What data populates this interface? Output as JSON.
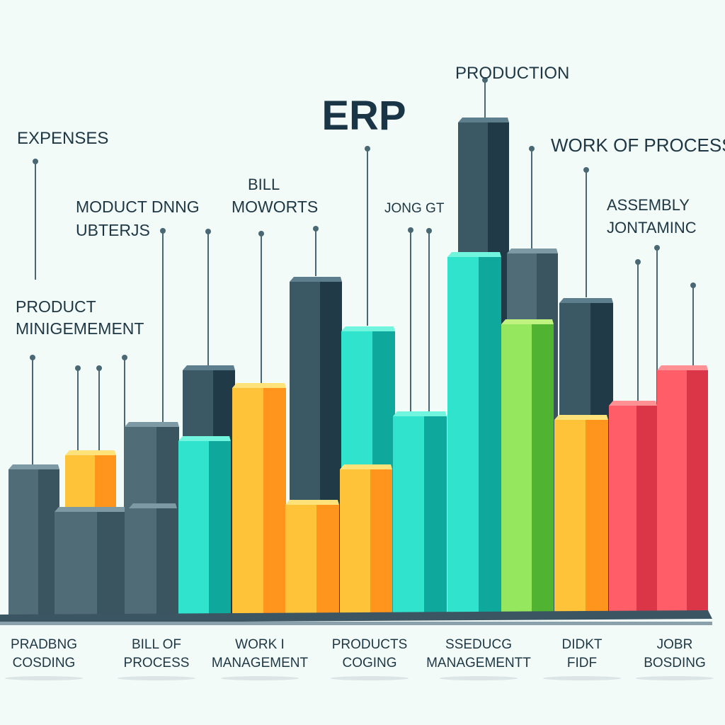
{
  "chart_data": {
    "type": "bar",
    "title": "ERP",
    "subtitle": "",
    "xlabel": "",
    "ylabel": "",
    "ylim": [
      0,
      1030
    ],
    "grid": false,
    "legend": "none",
    "colors": {
      "slate": [
        "#7d99a3",
        "#506c77",
        "#3a5560"
      ],
      "yellow": [
        "#ffe27a",
        "#ffc33a",
        "#ff951c"
      ],
      "teal": [
        "#71f5de",
        "#2fe3cd",
        "#0fa89d"
      ],
      "green": [
        "#bff27e",
        "#95e75d",
        "#50b331"
      ],
      "red": [
        "#ff9195",
        "#ff5d68",
        "#db3648"
      ],
      "navy": [
        "#5d7e8d",
        "#3b5965",
        "#203b47"
      ],
      "platform": "#3c5563",
      "leader_line": "#4a6874",
      "label_text": "#1e3744",
      "title_text": "#1a3545"
    },
    "bars": [
      {
        "value": 205,
        "color": "slate"
      },
      {
        "value": 225,
        "color": "yellow"
      },
      {
        "value": 145,
        "color": "slate"
      },
      {
        "value": 265,
        "color": "slate"
      },
      {
        "value": 150,
        "color": "slate"
      },
      {
        "value": 345,
        "color": "navy"
      },
      {
        "value": 245,
        "color": "teal"
      },
      {
        "value": 320,
        "color": "yellow"
      },
      {
        "value": 470,
        "color": "navy"
      },
      {
        "value": 155,
        "color": "yellow"
      },
      {
        "value": 400,
        "color": "teal"
      },
      {
        "value": 205,
        "color": "yellow"
      },
      {
        "value": 695,
        "color": "navy"
      },
      {
        "value": 280,
        "color": "teal"
      },
      {
        "value": 505,
        "color": "teal"
      },
      {
        "value": 510,
        "color": "slate"
      },
      {
        "value": 410,
        "color": "green"
      },
      {
        "value": 440,
        "color": "navy"
      },
      {
        "value": 275,
        "color": "yellow"
      },
      {
        "value": 295,
        "color": "red"
      },
      {
        "value": 345,
        "color": "red"
      }
    ],
    "annotations": [
      "EXPENSES",
      "MODUCT DNNG",
      "UBTERJS",
      "BILL",
      "MOWORTS",
      "JONG GT",
      "PRODUCTION",
      "WORK OF PROCESS",
      "ASSEMBLY",
      "JONTAMINC",
      "PRODUCT",
      "MINIGEMEMENT"
    ],
    "categories": [
      [
        "PRADBNG",
        "COSDING"
      ],
      [
        "BILL  OF",
        "PROCESS"
      ],
      [
        "WORK I",
        "MANAGEMENT"
      ],
      [
        "PRODUCTS",
        "COGING"
      ],
      [
        "SSEDUCG",
        "MANAGEMENTT"
      ],
      [
        "DIDKT",
        "FIDF"
      ],
      [
        "JOBR",
        "BOSDING"
      ]
    ]
  }
}
